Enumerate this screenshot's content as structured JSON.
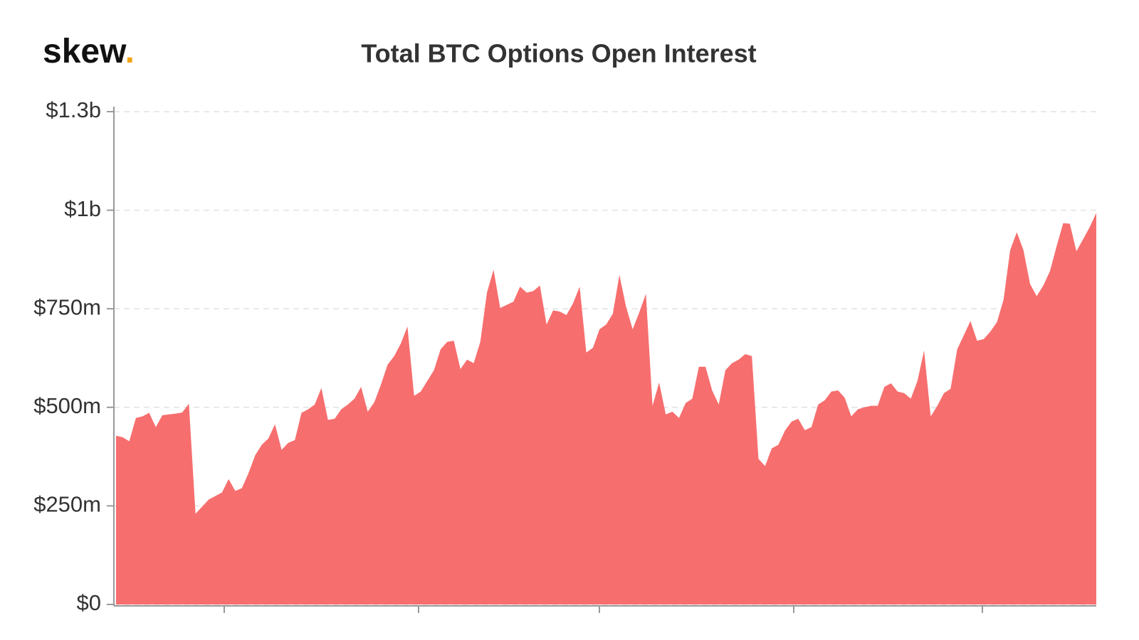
{
  "brand": {
    "name": "skew",
    "dot": "."
  },
  "chart_data": {
    "type": "area",
    "title": "Total BTC Options Open Interest",
    "categories": [
      null,
      null,
      null,
      null,
      null,
      null,
      null,
      null,
      null,
      null,
      null,
      null,
      null,
      null,
      null,
      null,
      null,
      null,
      null,
      null,
      null,
      null,
      null,
      null,
      null,
      null,
      null,
      null,
      null,
      null,
      null,
      null,
      null,
      null,
      null,
      null,
      null,
      null,
      null,
      null,
      null,
      null,
      null,
      null,
      null,
      null,
      null,
      null,
      null,
      null,
      null,
      null,
      null,
      null,
      null,
      null,
      null,
      null,
      null,
      null,
      null,
      null,
      null,
      null,
      null,
      null,
      null,
      null,
      null,
      null,
      null,
      null,
      null,
      null,
      null,
      null,
      null,
      null,
      null,
      null,
      null,
      null,
      null,
      null,
      null,
      null,
      null,
      null,
      null,
      null,
      null,
      null,
      null,
      null,
      null,
      null,
      null,
      null,
      null,
      null,
      null,
      null,
      null,
      null,
      null,
      null,
      null,
      null,
      null,
      null,
      null,
      null,
      null,
      null,
      null,
      null,
      null,
      null,
      null,
      null,
      null,
      null,
      null,
      null,
      null,
      null,
      null,
      null,
      null,
      null,
      null,
      null,
      null,
      null,
      null,
      null,
      null,
      null,
      null,
      null,
      null,
      null,
      null,
      null,
      null,
      null,
      null,
      null,
      null
    ],
    "values": [
      428,
      424,
      414,
      473,
      477,
      486,
      450,
      480,
      482,
      484,
      487,
      509,
      230,
      248,
      266,
      275,
      284,
      318,
      288,
      295,
      333,
      378,
      405,
      421,
      457,
      392,
      410,
      417,
      486,
      495,
      507,
      549,
      468,
      471,
      495,
      507,
      522,
      552,
      489,
      513,
      558,
      608,
      630,
      662,
      705,
      529,
      540,
      567,
      594,
      647,
      666,
      669,
      597,
      621,
      612,
      666,
      791,
      849,
      752,
      760,
      768,
      806,
      791,
      795,
      809,
      710,
      746,
      743,
      734,
      764,
      806,
      639,
      651,
      698,
      710,
      737,
      836,
      755,
      698,
      741,
      788,
      504,
      563,
      482,
      489,
      473,
      511,
      522,
      603,
      603,
      543,
      507,
      594,
      612,
      621,
      635,
      630,
      369,
      351,
      396,
      405,
      441,
      464,
      471,
      442,
      450,
      507,
      518,
      540,
      543,
      525,
      477,
      495,
      500,
      504,
      504,
      552,
      561,
      540,
      536,
      522,
      567,
      644,
      477,
      504,
      536,
      547,
      647,
      683,
      719,
      669,
      673,
      692,
      716,
      773,
      899,
      944,
      899,
      813,
      782,
      809,
      845,
      908,
      967,
      966,
      896,
      926,
      957,
      993
    ],
    "color": "#f76e6e",
    "ylim": [
      0,
      1250
    ],
    "yticks": [
      {
        "value": 0,
        "label": "$0"
      },
      {
        "value": 250,
        "label": "$250m"
      },
      {
        "value": 500,
        "label": "$500m"
      },
      {
        "value": 750,
        "label": "$750m"
      },
      {
        "value": 1000,
        "label": "$1b"
      },
      {
        "value": 1250,
        "label": "$1.3b"
      }
    ],
    "grid": true
  }
}
